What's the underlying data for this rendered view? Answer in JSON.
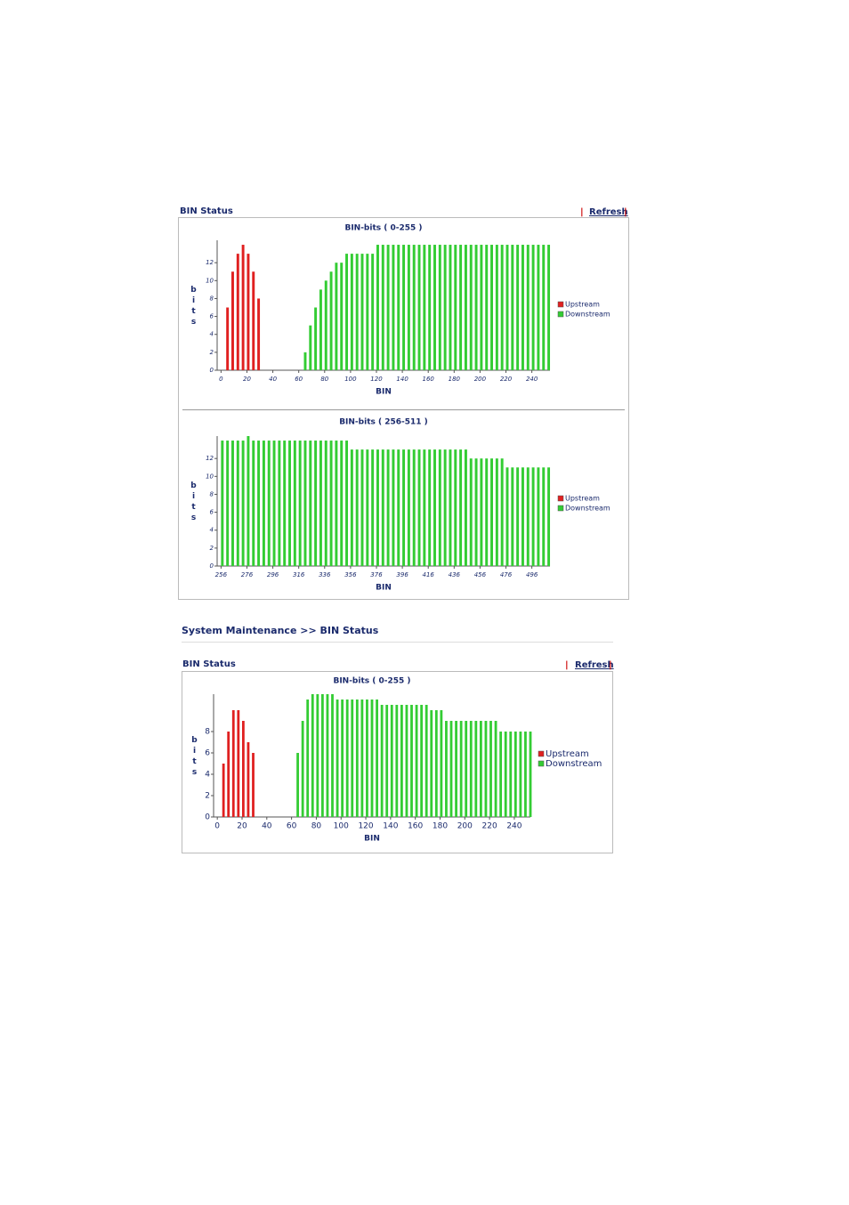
{
  "sections": [
    {
      "header": "BIN Status",
      "link": "Refresh"
    },
    {
      "header": "BIN Status",
      "link": "Refresh"
    }
  ],
  "breadcrumb": "System Maintenance >> BIN Status",
  "chart_data": [
    {
      "type": "bar",
      "title": "BIN-bits ( 0-255 )",
      "xlabel": "BIN",
      "ylabel": "bits",
      "legend": "right",
      "x": [
        0,
        4,
        8,
        12,
        16,
        20,
        24,
        28,
        32,
        36,
        40,
        44,
        48,
        52,
        56,
        60,
        64,
        68,
        72,
        76,
        80,
        84,
        88,
        92,
        96,
        100,
        104,
        108,
        112,
        116,
        120,
        124,
        128,
        132,
        136,
        140,
        144,
        148,
        152,
        156,
        160,
        164,
        168,
        172,
        176,
        180,
        184,
        188,
        192,
        196,
        200,
        204,
        208,
        212,
        216,
        220,
        224,
        228,
        232,
        236,
        240,
        244,
        248,
        252
      ],
      "series": [
        {
          "name": "Upstream",
          "color": "#e02020",
          "values": [
            null,
            7,
            11,
            13,
            14,
            13,
            11,
            8,
            null,
            null,
            null,
            null,
            null,
            null,
            null,
            null,
            null,
            null,
            null,
            null,
            null,
            null,
            null,
            null,
            null,
            null,
            null,
            null,
            null,
            null,
            null,
            null,
            null,
            null,
            null,
            null,
            null,
            null,
            null,
            null,
            null,
            null,
            null,
            null,
            null,
            null,
            null,
            null,
            null,
            null,
            null,
            null,
            null,
            null,
            null,
            null,
            null,
            null,
            null,
            null,
            null,
            null,
            null,
            null
          ]
        },
        {
          "name": "Downstream",
          "color": "#33cc33",
          "values": [
            null,
            null,
            null,
            null,
            null,
            null,
            null,
            null,
            null,
            null,
            null,
            null,
            null,
            null,
            null,
            null,
            2,
            5,
            7,
            9,
            10,
            11,
            12,
            12,
            13,
            13,
            13,
            13,
            13,
            13,
            14,
            14,
            14,
            14,
            14,
            14,
            14,
            14,
            14,
            14,
            14,
            14,
            14,
            14,
            14,
            14,
            14,
            14,
            14,
            14,
            14,
            14,
            14,
            14,
            14,
            14,
            14,
            14,
            14,
            14,
            14,
            14,
            14,
            14
          ]
        }
      ],
      "xlim": [
        -3,
        254
      ],
      "xticks": [
        0,
        20,
        40,
        60,
        80,
        100,
        120,
        140,
        160,
        180,
        200,
        220,
        240
      ],
      "ylim": [
        0,
        14.5
      ],
      "yticks": [
        0,
        2,
        4,
        6,
        8,
        10,
        12
      ]
    },
    {
      "type": "bar",
      "title": "BIN-bits ( 256-511 )",
      "xlabel": "BIN",
      "ylabel": "bits",
      "legend": "right",
      "x": [
        256,
        260,
        264,
        268,
        272,
        276,
        280,
        284,
        288,
        292,
        296,
        300,
        304,
        308,
        312,
        316,
        320,
        324,
        328,
        332,
        336,
        340,
        344,
        348,
        352,
        356,
        360,
        364,
        368,
        372,
        376,
        380,
        384,
        388,
        392,
        396,
        400,
        404,
        408,
        412,
        416,
        420,
        424,
        428,
        432,
        436,
        440,
        444,
        448,
        452,
        456,
        460,
        464,
        468,
        472,
        476,
        480,
        484,
        488,
        492,
        496,
        500,
        504,
        508
      ],
      "series": [
        {
          "name": "Upstream",
          "color": "#e02020",
          "values": [
            null,
            null,
            null,
            null,
            null,
            null,
            null,
            null,
            null,
            null,
            null,
            null,
            null,
            null,
            null,
            null,
            null,
            null,
            null,
            null,
            null,
            null,
            null,
            null,
            null,
            null,
            null,
            null,
            null,
            null,
            null,
            null,
            null,
            null,
            null,
            null,
            null,
            null,
            null,
            null,
            null,
            null,
            null,
            null,
            null,
            null,
            null,
            null,
            null,
            null,
            null,
            null,
            null,
            null,
            null,
            null,
            null,
            null,
            null,
            null,
            null,
            null,
            null,
            null
          ]
        },
        {
          "name": "Downstream",
          "color": "#33cc33",
          "values": [
            14,
            14,
            14,
            14,
            14,
            14.5,
            14,
            14,
            14,
            14,
            14,
            14,
            14,
            14,
            14,
            14,
            14,
            14,
            14,
            14,
            14,
            14,
            14,
            14,
            14,
            13,
            13,
            13,
            13,
            13,
            13,
            13,
            13,
            13,
            13,
            13,
            13,
            13,
            13,
            13,
            13,
            13,
            13,
            13,
            13,
            13,
            13,
            13,
            12,
            12,
            12,
            12,
            12,
            12,
            12,
            11,
            11,
            11,
            11,
            11,
            11,
            11,
            11,
            11
          ]
        }
      ],
      "xlim": [
        253,
        510
      ],
      "xticks": [
        256,
        276,
        296,
        316,
        336,
        356,
        376,
        396,
        416,
        436,
        456,
        476,
        496
      ],
      "ylim": [
        0,
        14.5
      ],
      "yticks": [
        0,
        2,
        4,
        6,
        8,
        10,
        12
      ]
    },
    {
      "type": "bar",
      "title": "BIN-bits ( 0-255 )",
      "xlabel": "BIN",
      "ylabel": "bits",
      "legend": "right",
      "x": [
        0,
        4,
        8,
        12,
        16,
        20,
        24,
        28,
        32,
        36,
        40,
        44,
        48,
        52,
        56,
        60,
        64,
        68,
        72,
        76,
        80,
        84,
        88,
        92,
        96,
        100,
        104,
        108,
        112,
        116,
        120,
        124,
        128,
        132,
        136,
        140,
        144,
        148,
        152,
        156,
        160,
        164,
        168,
        172,
        176,
        180,
        184,
        188,
        192,
        196,
        200,
        204,
        208,
        212,
        216,
        220,
        224,
        228,
        232,
        236,
        240,
        244,
        248,
        252
      ],
      "series": [
        {
          "name": "Upstream",
          "color": "#e02020",
          "values": [
            null,
            5,
            8,
            10,
            10,
            9,
            7,
            6,
            null,
            null,
            null,
            null,
            null,
            null,
            null,
            null,
            null,
            null,
            null,
            null,
            null,
            null,
            null,
            null,
            null,
            null,
            null,
            null,
            null,
            null,
            null,
            null,
            null,
            null,
            null,
            null,
            null,
            null,
            null,
            null,
            null,
            null,
            null,
            null,
            null,
            null,
            null,
            null,
            null,
            null,
            null,
            null,
            null,
            null,
            null,
            null,
            null,
            null,
            null,
            null,
            null,
            null,
            null,
            null
          ]
        },
        {
          "name": "Downstream",
          "color": "#33cc33",
          "values": [
            null,
            null,
            null,
            null,
            null,
            null,
            null,
            null,
            null,
            null,
            null,
            null,
            null,
            null,
            null,
            null,
            6,
            9,
            11,
            11.5,
            11.5,
            11.5,
            11.5,
            11.5,
            11,
            11,
            11,
            11,
            11,
            11,
            11,
            11,
            11,
            10.5,
            10.5,
            10.5,
            10.5,
            10.5,
            10.5,
            10.5,
            10.5,
            10.5,
            10.5,
            10,
            10,
            10,
            9,
            9,
            9,
            9,
            9,
            9,
            9,
            9,
            9,
            9,
            9,
            8,
            8,
            8,
            8,
            8,
            8,
            8
          ]
        }
      ],
      "xlim": [
        -3,
        253
      ],
      "xticks": [
        0,
        20,
        40,
        60,
        80,
        100,
        120,
        140,
        160,
        180,
        200,
        220,
        240
      ],
      "ylim": [
        0,
        11.5
      ],
      "yticks": [
        0,
        2,
        4,
        6,
        8
      ]
    }
  ]
}
